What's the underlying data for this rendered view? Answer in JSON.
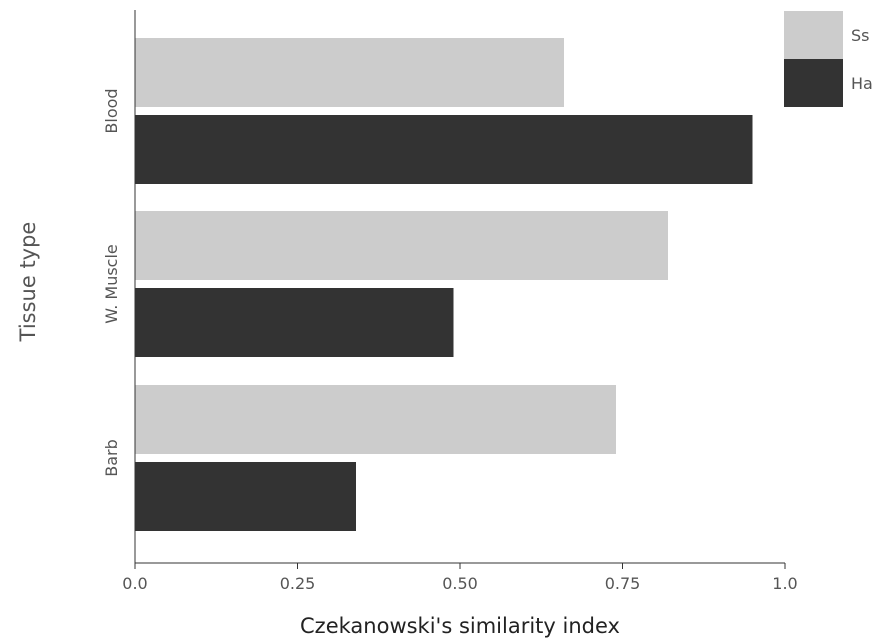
{
  "chart_data": {
    "type": "bar",
    "orientation": "horizontal",
    "categories": [
      "Blood",
      "W. Muscle",
      "Barb"
    ],
    "series": [
      {
        "name": "Ss",
        "color": "#cccccc",
        "values": [
          0.66,
          0.82,
          0.74
        ]
      },
      {
        "name": "Ha",
        "color": "#333333",
        "values": [
          0.95,
          0.49,
          0.34
        ]
      }
    ],
    "xlabel": "Czekanowski's similarity index",
    "ylabel": "Tissue type",
    "xlim": [
      0,
      1
    ],
    "xticks": [
      "0.0",
      "0.25",
      "0.50",
      "0.75",
      "1.0"
    ],
    "grid": false,
    "legend_position": "top-right"
  }
}
